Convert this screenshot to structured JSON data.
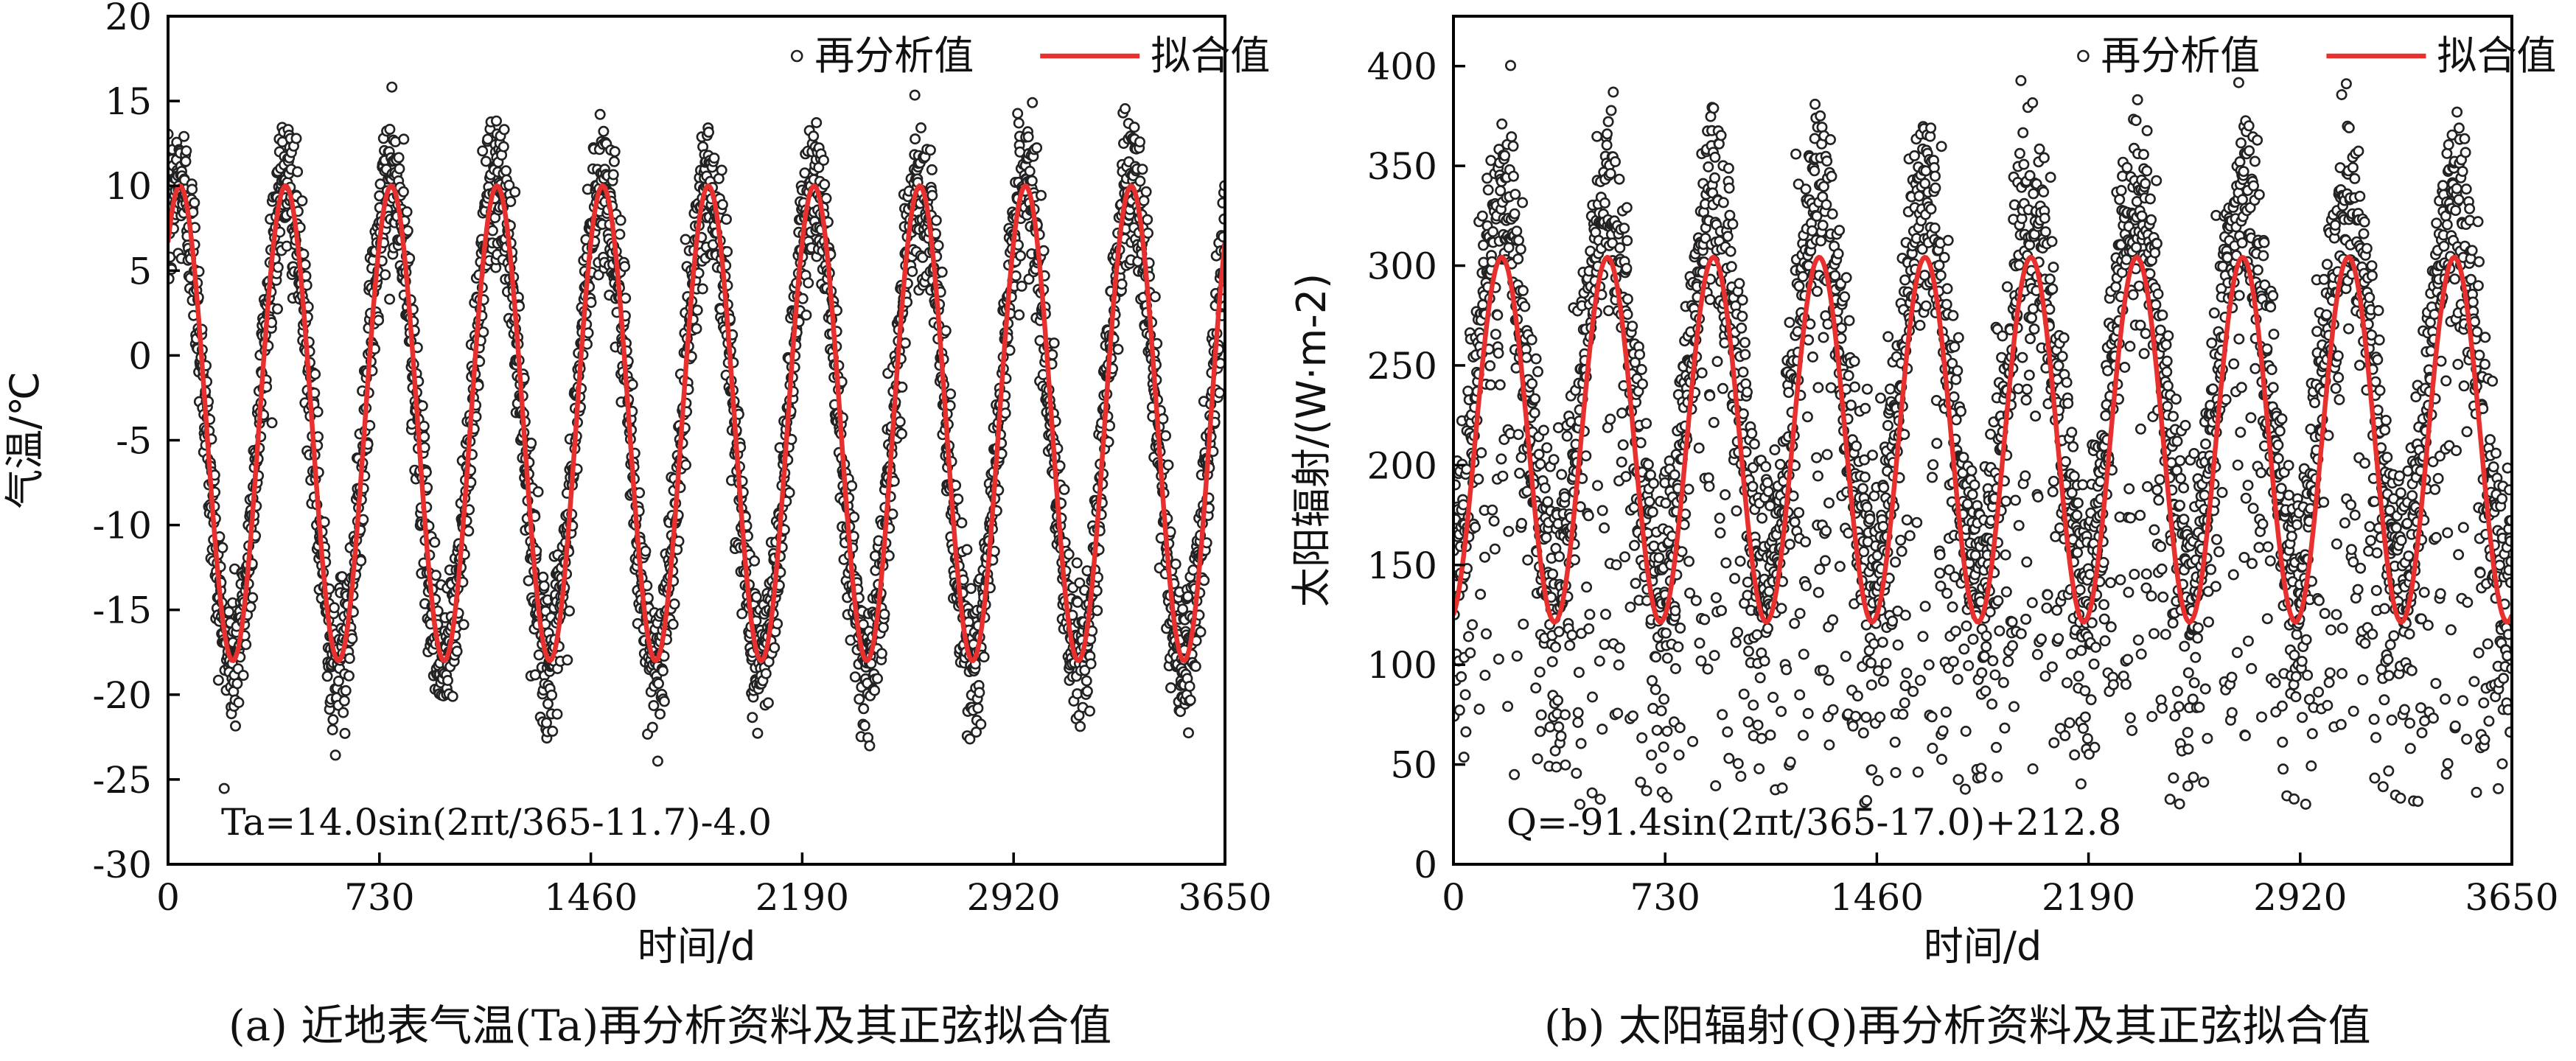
{
  "figure": {
    "caption_a": "(a) 近地表气温(Ta)再分析资料及其正弦拟合值",
    "caption_b": "(b) 太阳辐射(Q)再分析资料及其正弦拟合值"
  },
  "chart_data": [
    {
      "type": "scatter",
      "panel": "a",
      "xlabel": "时间/d",
      "ylabel": "气温/℃",
      "xlim": [
        0,
        3650
      ],
      "ylim": [
        -30,
        20
      ],
      "xticks": [
        0,
        730,
        1460,
        2190,
        2920,
        3650
      ],
      "yticks": [
        20,
        15,
        10,
        5,
        0,
        -5,
        -10,
        -15,
        -20,
        -25,
        -30
      ],
      "grid": false,
      "legend": {
        "position": "top-right",
        "entries": [
          "再分析值",
          "拟合值"
        ]
      },
      "annotation": "Ta=14.0sin(2πt/365-11.7)-4.0",
      "series": [
        {
          "name": "再分析值",
          "style": "open-circle-markers",
          "color": "#222222",
          "daily_points": 3650,
          "derived_from_fit": {
            "amplitude": 14.0,
            "phase": -11.7,
            "offset": -4.0,
            "period_days": 365
          },
          "observed_peak_range": [
            12,
            18
          ],
          "observed_trough_range": [
            -26,
            -17
          ]
        },
        {
          "name": "拟合值",
          "style": "line",
          "color": "#e8312f",
          "amplitude": 14.0,
          "phase": -11.7,
          "offset": -4.0,
          "period_days": 365,
          "peak": 10.0,
          "trough": -18.0
        }
      ]
    },
    {
      "type": "scatter",
      "panel": "b",
      "xlabel": "时间/d",
      "ylabel": "太阳辐射/(W·m-2)",
      "xlim": [
        0,
        3650
      ],
      "ylim": [
        0,
        425
      ],
      "xticks": [
        0,
        730,
        1460,
        2190,
        2920,
        3650
      ],
      "yticks": [
        400,
        350,
        300,
        250,
        200,
        150,
        100,
        50,
        0
      ],
      "grid": false,
      "legend": {
        "position": "top-right",
        "entries": [
          "再分析值",
          "拟合值"
        ]
      },
      "annotation": "Q=-91.4sin(2πt/365-17.0)+212.8",
      "series": [
        {
          "name": "再分析值",
          "style": "open-circle-markers",
          "color": "#222222",
          "daily_points": 3650,
          "derived_from_fit": {
            "amplitude": -91.4,
            "phase": -17.0,
            "offset": 212.8,
            "period_days": 365
          },
          "observed_peak_range": [
            340,
            385
          ],
          "observed_trough_range": [
            40,
            120
          ]
        },
        {
          "name": "拟合值",
          "style": "line",
          "color": "#e8312f",
          "amplitude": -91.4,
          "phase": -17.0,
          "offset": 212.8,
          "period_days": 365,
          "peak": 304.2,
          "trough": 121.4
        }
      ]
    }
  ]
}
